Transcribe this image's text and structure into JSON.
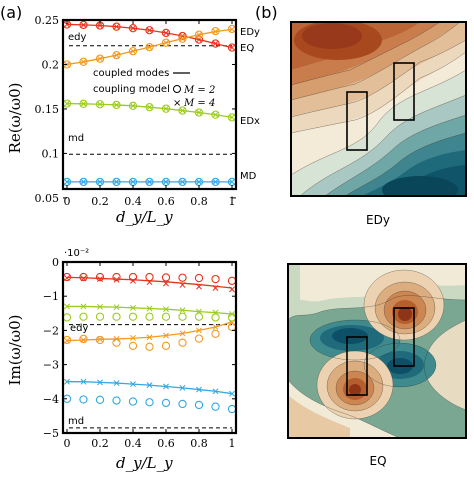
{
  "panel_labels": {
    "a": "(a)",
    "b": "(b)"
  },
  "legend": {
    "coupled_modes": "coupled modes",
    "coupling_model": "coupling model",
    "m2": "M = 2",
    "m4": "M = 4"
  },
  "field_maps": [
    {
      "label": "EDy"
    },
    {
      "label": "EQ"
    }
  ],
  "colors": {
    "red": "#e8341c",
    "orange": "#f29a21",
    "green": "#9ccd1e",
    "blue": "#35a8e0"
  },
  "chart_data": [
    {
      "type": "line",
      "xlabel": "d_y/L_y",
      "ylabel": "Re(ω/ω0)",
      "xlim": [
        0,
        1
      ],
      "ylim": [
        0.06,
        0.25
      ],
      "xticks": [
        "0",
        "0.2",
        "0.4",
        "0.6",
        "0.8",
        "1"
      ],
      "yticks": [
        {
          "v": 0.25,
          "t": "0.25"
        },
        {
          "v": 0.2,
          "t": "0.2"
        },
        {
          "v": 0.15,
          "t": "0.15"
        },
        {
          "v": 0.1,
          "t": "0.1"
        },
        {
          "v": 0.05,
          "t": "0.05"
        }
      ],
      "grid": false,
      "x": [
        0,
        0.1,
        0.2,
        0.3,
        0.4,
        0.5,
        0.6,
        0.7,
        0.8,
        0.9,
        1.0
      ],
      "series": [
        {
          "name": "EDy",
          "color": "#e8341c",
          "line": [
            0.245,
            0.2445,
            0.2438,
            0.2425,
            0.2408,
            0.2385,
            0.2355,
            0.232,
            0.228,
            0.2235,
            0.219
          ],
          "m2": [
            0.245,
            0.2445,
            0.2438,
            0.2425,
            0.2408,
            0.2385,
            0.2355,
            0.232,
            0.228,
            0.2235,
            0.219
          ],
          "m4": [
            0.245,
            0.2445,
            0.2438,
            0.2425,
            0.2408,
            0.2385,
            0.2355,
            0.232,
            0.228,
            0.2235,
            0.219
          ]
        },
        {
          "name": "EQ",
          "color": "#f29a21",
          "line": [
            0.2,
            0.203,
            0.2065,
            0.2105,
            0.215,
            0.2195,
            0.2245,
            0.229,
            0.2335,
            0.237,
            0.2395
          ],
          "m2": [
            0.2,
            0.203,
            0.2065,
            0.2105,
            0.215,
            0.2195,
            0.2245,
            0.229,
            0.2335,
            0.2375,
            0.24
          ],
          "m4": [
            0.2,
            0.203,
            0.2065,
            0.2105,
            0.215,
            0.2195,
            0.2245,
            0.229,
            0.2335,
            0.237,
            0.2395
          ]
        },
        {
          "name": "EDx",
          "color": "#9ccd1e",
          "line": [
            0.156,
            0.1558,
            0.1553,
            0.1545,
            0.1535,
            0.152,
            0.1503,
            0.1482,
            0.146,
            0.1435,
            0.1405
          ],
          "m2": [
            0.156,
            0.1558,
            0.1553,
            0.1545,
            0.1535,
            0.152,
            0.1503,
            0.1482,
            0.146,
            0.1435,
            0.1405
          ],
          "m4": [
            0.156,
            0.1558,
            0.1553,
            0.1545,
            0.1535,
            0.152,
            0.1503,
            0.1482,
            0.146,
            0.1435,
            0.1405
          ]
        },
        {
          "name": "MD",
          "color": "#35a8e0",
          "line": [
            0.068,
            0.068,
            0.068,
            0.068,
            0.068,
            0.068,
            0.068,
            0.068,
            0.068,
            0.068,
            0.068
          ],
          "m2": [
            0.068,
            0.068,
            0.068,
            0.068,
            0.068,
            0.068,
            0.068,
            0.068,
            0.068,
            0.068,
            0.068
          ],
          "m4": [
            0.068,
            0.068,
            0.068,
            0.068,
            0.068,
            0.068,
            0.068,
            0.068,
            0.068,
            0.068,
            0.068
          ]
        }
      ],
      "reference_lines": [
        {
          "label": "edy",
          "y": 0.221
        },
        {
          "label": "md",
          "y": 0.099
        }
      ]
    },
    {
      "type": "line",
      "xlabel": "d_y/L_y",
      "ylabel": "Im(ω/ω0)",
      "scale_label": "·10⁻²",
      "xlim": [
        0,
        1
      ],
      "ylim": [
        -5,
        0
      ],
      "xticks": [
        "0",
        "0.2",
        "0.4",
        "0.6",
        "0.8",
        "1"
      ],
      "yticks": [
        {
          "v": 0,
          "t": "0"
        },
        {
          "v": -1,
          "t": "−1"
        },
        {
          "v": -2,
          "t": "−2"
        },
        {
          "v": -3,
          "t": "−3"
        },
        {
          "v": -4,
          "t": "−4"
        },
        {
          "v": -5,
          "t": "−5"
        }
      ],
      "grid": false,
      "x": [
        0,
        0.1,
        0.2,
        0.3,
        0.4,
        0.5,
        0.6,
        0.7,
        0.8,
        0.9,
        1.0
      ],
      "series": [
        {
          "name": "EDy",
          "color": "#e8341c",
          "line": [
            -0.45,
            -0.46,
            -0.48,
            -0.5,
            -0.52,
            -0.55,
            -0.58,
            -0.62,
            -0.66,
            -0.71,
            -0.76
          ],
          "m2": [
            -0.44,
            -0.44,
            -0.44,
            -0.44,
            -0.44,
            -0.44,
            -0.45,
            -0.46,
            -0.47,
            -0.5,
            -0.55
          ],
          "m4": [
            -0.47,
            -0.48,
            -0.5,
            -0.52,
            -0.55,
            -0.59,
            -0.63,
            -0.67,
            -0.72,
            -0.76,
            -0.8
          ]
        },
        {
          "name": "EQ",
          "color": "#f29a21",
          "line": [
            -2.3,
            -2.28,
            -2.26,
            -2.25,
            -2.23,
            -2.2,
            -2.15,
            -2.09,
            -2.0,
            -1.9,
            -1.75
          ],
          "m2": [
            -2.28,
            -2.25,
            -2.28,
            -2.36,
            -2.45,
            -2.48,
            -2.45,
            -2.36,
            -2.24,
            -2.1,
            -1.9
          ],
          "m4": [
            -2.3,
            -2.28,
            -2.26,
            -2.25,
            -2.22,
            -2.2,
            -2.15,
            -2.09,
            -2.0,
            -1.9,
            -1.78
          ]
        },
        {
          "name": "EDx",
          "color": "#9ccd1e",
          "line": [
            -1.3,
            -1.3,
            -1.31,
            -1.32,
            -1.34,
            -1.36,
            -1.38,
            -1.41,
            -1.45,
            -1.48,
            -1.52
          ],
          "m2": [
            -1.62,
            -1.6,
            -1.6,
            -1.6,
            -1.6,
            -1.6,
            -1.6,
            -1.6,
            -1.6,
            -1.62,
            -1.62
          ],
          "m4": [
            -1.3,
            -1.3,
            -1.31,
            -1.32,
            -1.34,
            -1.36,
            -1.38,
            -1.41,
            -1.45,
            -1.48,
            -1.52
          ]
        },
        {
          "name": "MD",
          "color": "#35a8e0",
          "line": [
            -3.5,
            -3.5,
            -3.52,
            -3.54,
            -3.57,
            -3.6,
            -3.64,
            -3.68,
            -3.73,
            -3.78,
            -3.85
          ],
          "m2": [
            -4.0,
            -4.02,
            -4.03,
            -4.05,
            -4.08,
            -4.1,
            -4.12,
            -4.15,
            -4.18,
            -4.23,
            -4.3
          ],
          "m4": [
            -3.5,
            -3.5,
            -3.52,
            -3.54,
            -3.57,
            -3.6,
            -3.64,
            -3.68,
            -3.73,
            -3.78,
            -3.85
          ]
        }
      ],
      "reference_lines": [
        {
          "label": "edy",
          "y": -1.83
        },
        {
          "label": "md",
          "y": -4.85
        }
      ]
    }
  ]
}
